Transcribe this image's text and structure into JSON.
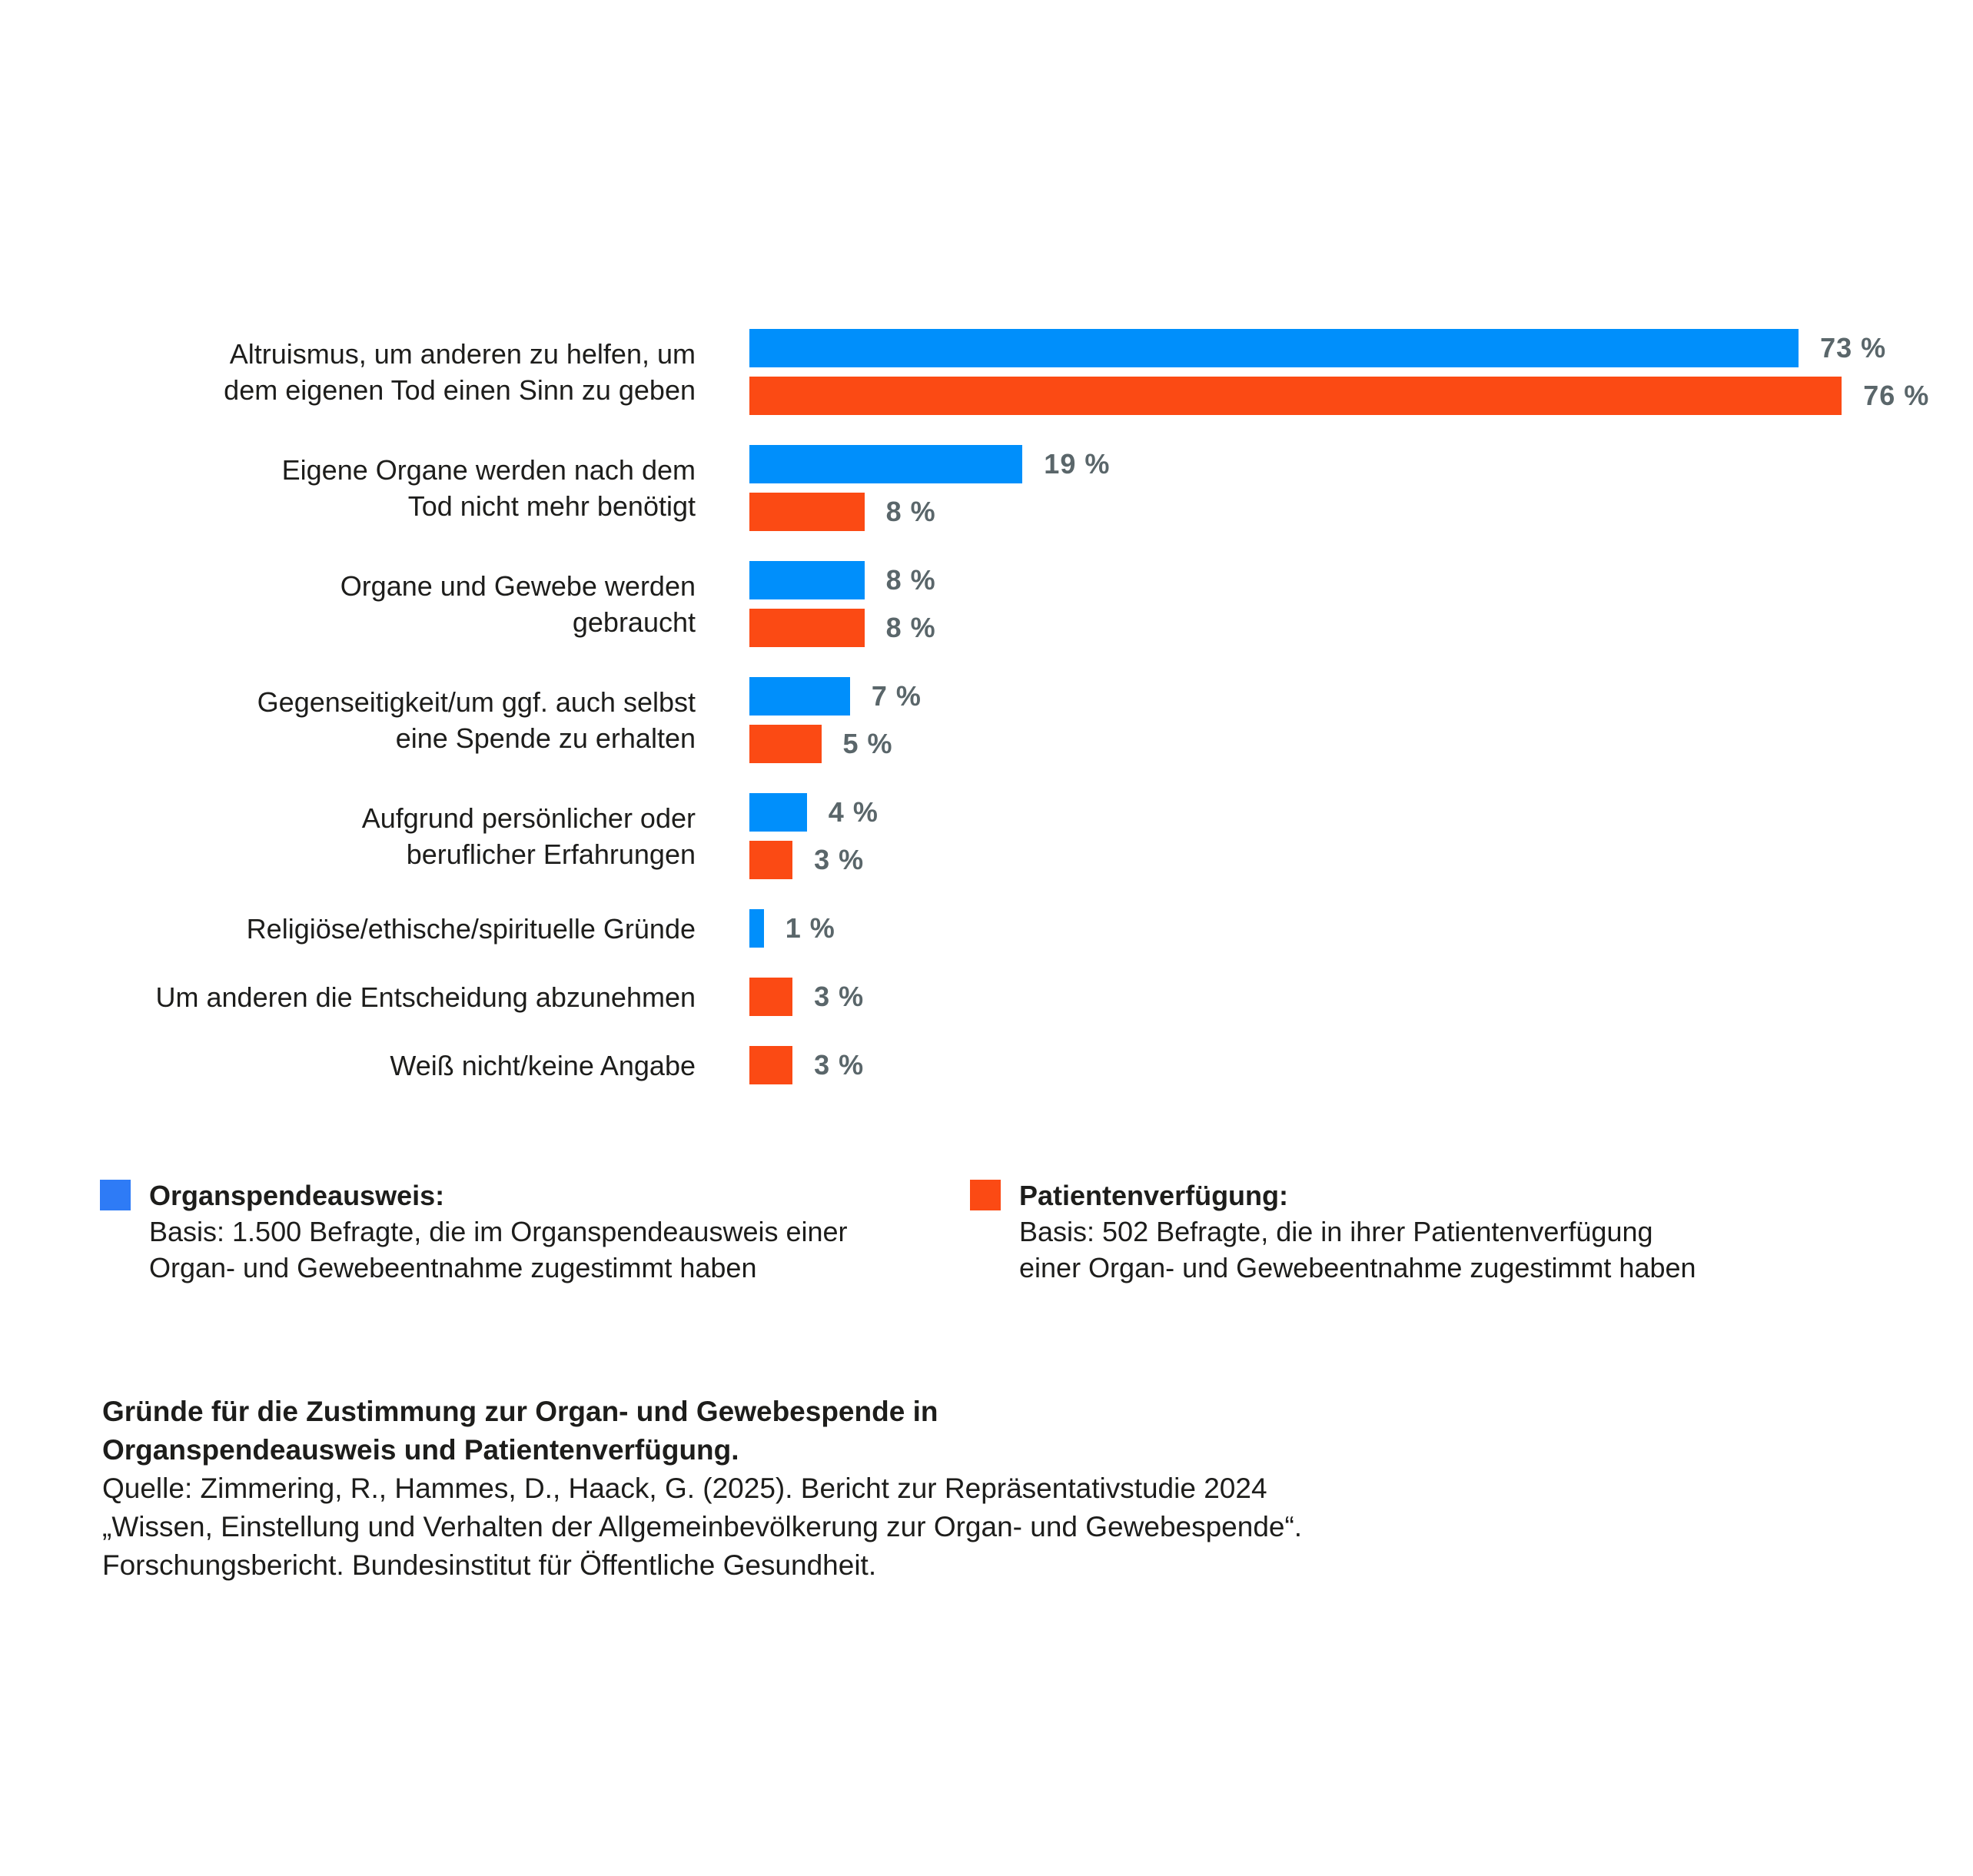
{
  "colors": {
    "bar_blue": "#008ffb",
    "bar_orange": "#fb4a14",
    "legend_blue": "#2e7bf6",
    "legend_orange": "#fb4a14",
    "value_label_gray": "#5a666a",
    "text_black": "#1d1d1b",
    "background": "#ffffff"
  },
  "chart_data": {
    "type": "bar",
    "orientation": "horizontal",
    "unit": "%",
    "xlim": [
      0,
      80
    ],
    "grid": false,
    "axis_shown": false,
    "series_names": [
      "Organspendeausweis",
      "Patientenverfügung"
    ],
    "rows": [
      {
        "label_lines": [
          "Altruismus, um anderen zu helfen, um",
          "dem eigenen Tod einen Sinn zu geben"
        ],
        "bars": [
          {
            "series": "Organspendeausweis",
            "value": 73,
            "label": "73 %"
          },
          {
            "series": "Patientenverfügung",
            "value": 76,
            "label": "76 %"
          }
        ]
      },
      {
        "label_lines": [
          "Eigene Organe werden nach dem",
          "Tod nicht mehr benötigt"
        ],
        "bars": [
          {
            "series": "Organspendeausweis",
            "value": 19,
            "label": "19 %"
          },
          {
            "series": "Patientenverfügung",
            "value": 8,
            "label": "8 %"
          }
        ]
      },
      {
        "label_lines": [
          "Organe und Gewebe werden",
          "gebraucht"
        ],
        "bars": [
          {
            "series": "Organspendeausweis",
            "value": 8,
            "label": "8 %"
          },
          {
            "series": "Patientenverfügung",
            "value": 8,
            "label": "8 %"
          }
        ]
      },
      {
        "label_lines": [
          "Gegenseitigkeit/um ggf. auch selbst",
          "eine Spende zu erhalten"
        ],
        "bars": [
          {
            "series": "Organspendeausweis",
            "value": 7,
            "label": "7 %"
          },
          {
            "series": "Patientenverfügung",
            "value": 5,
            "label": "5 %"
          }
        ]
      },
      {
        "label_lines": [
          "Aufgrund persönlicher oder",
          "beruflicher Erfahrungen"
        ],
        "bars": [
          {
            "series": "Organspendeausweis",
            "value": 4,
            "label": "4 %"
          },
          {
            "series": "Patientenverfügung",
            "value": 3,
            "label": "3 %"
          }
        ]
      },
      {
        "label_lines": [
          "Religiöse/ethische/spirituelle Gründe"
        ],
        "bars": [
          {
            "series": "Organspendeausweis",
            "value": 1,
            "label": "1 %"
          }
        ]
      },
      {
        "label_lines": [
          "Um anderen die Entscheidung abzunehmen"
        ],
        "bars": [
          {
            "series": "Patientenverfügung",
            "value": 3,
            "label": "3 %"
          }
        ]
      },
      {
        "label_lines": [
          "Weiß nicht/keine Angabe"
        ],
        "bars": [
          {
            "series": "Patientenverfügung",
            "value": 3,
            "label": "3 %"
          }
        ]
      }
    ]
  },
  "legend": {
    "items": [
      {
        "title": "Organspendeausweis:",
        "body_lines": [
          "Basis: 1.500 Befragte, die im Organspendeausweis einer",
          "Organ- und Gewebeentnahme zugestimmt haben"
        ]
      },
      {
        "title": "Patientenverfügung:",
        "body_lines": [
          "Basis: 502 Befragte, die in ihrer Patientenverfügung",
          "einer Organ- und Gewebeentnahme zugestimmt haben"
        ]
      }
    ]
  },
  "caption": {
    "bold_lines": [
      "Gründe für die Zustimmung zur Organ- und Gewebespende in",
      "Organspendeausweis und Patientenverfügung."
    ],
    "lines": [
      "Quelle: Zimmering, R., Hammes, D., Haack, G. (2025). Bericht zur Repräsentativstudie 2024",
      "„Wissen, Einstellung und Verhalten der Allgemeinbevölkerung zur Organ- und Gewebespende“.",
      "Forschungsbericht. Bundesinstitut für Öffentliche Gesundheit."
    ]
  }
}
